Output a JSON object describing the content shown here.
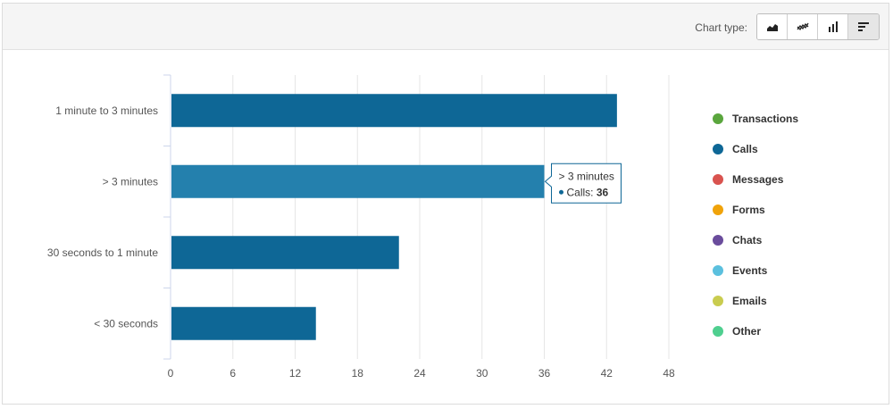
{
  "toolbar": {
    "chart_type_label": "Chart type:",
    "buttons": [
      {
        "name": "area-chart-icon",
        "active": false
      },
      {
        "name": "line-chart-icon",
        "active": false
      },
      {
        "name": "column-chart-icon",
        "active": false
      },
      {
        "name": "bar-chart-icon",
        "active": true
      }
    ]
  },
  "legend": {
    "items": [
      {
        "label": "Transactions",
        "color": "#5aa63d"
      },
      {
        "label": "Calls",
        "color": "#0e6796"
      },
      {
        "label": "Messages",
        "color": "#d9534f"
      },
      {
        "label": "Forms",
        "color": "#f0a30a"
      },
      {
        "label": "Chats",
        "color": "#6a4c9c"
      },
      {
        "label": "Events",
        "color": "#5bc0de"
      },
      {
        "label": "Emails",
        "color": "#c9cc4f"
      },
      {
        "label": "Other",
        "color": "#4fcf8f"
      }
    ]
  },
  "tooltip": {
    "title": "> 3 minutes",
    "series": "Calls: ",
    "value": "36"
  },
  "chart_data": {
    "type": "bar",
    "orientation": "horizontal",
    "categories": [
      "1 minute to 3 minutes",
      "> 3 minutes",
      "30 seconds to 1 minute",
      "< 30 seconds"
    ],
    "series": [
      {
        "name": "Calls",
        "values": [
          43,
          36,
          22,
          14
        ]
      }
    ],
    "xlim": [
      0,
      48
    ],
    "xticks": [
      0,
      6,
      12,
      18,
      24,
      30,
      36,
      42,
      48
    ],
    "grid": true,
    "bar_color": "#0e6796",
    "highlight_color": "#2480ad",
    "highlight_index": 1,
    "legend_position": "right"
  }
}
